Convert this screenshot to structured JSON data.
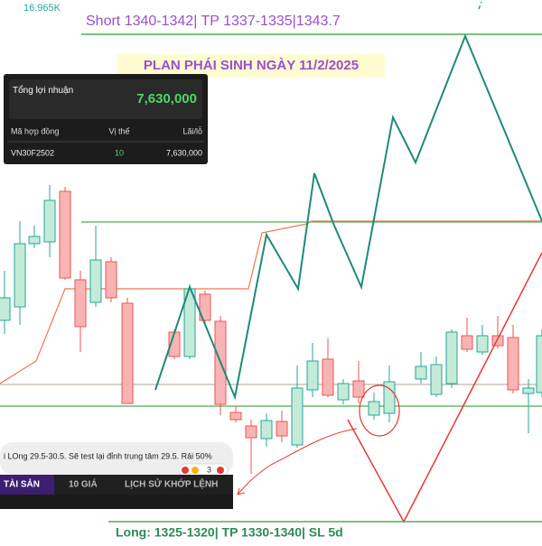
{
  "header": {
    "ticker_value": "16.965K",
    "short_plan": "Short 1340-1342| TP 1337-1335|1343.7",
    "plan_title": "PLAN PHÁI SINH NGÀY 11/2/2025"
  },
  "profit_panel": {
    "label": "Tổng lợi nhuận",
    "total": "7,630,000",
    "table": {
      "columns": [
        "Mã hợp đồng",
        "Vị thế",
        "Lãi/lỗ"
      ],
      "rows": [
        [
          "VN30F2502",
          "10",
          "7,630,000"
        ]
      ]
    }
  },
  "comment": {
    "text": "i LOng 29.5-30.5. Sẽ test lại đỉnh trung tâm 29.5. Rải 50%",
    "reactions": "3"
  },
  "tabs": [
    "TÀI SẢN",
    "10 GIÁ",
    "LỊCH SỬ KHỚP LỆNH"
  ],
  "footer": {
    "long_plan": "Long: 1325-1320| TP 1330-1340| SL 5d"
  }
}
